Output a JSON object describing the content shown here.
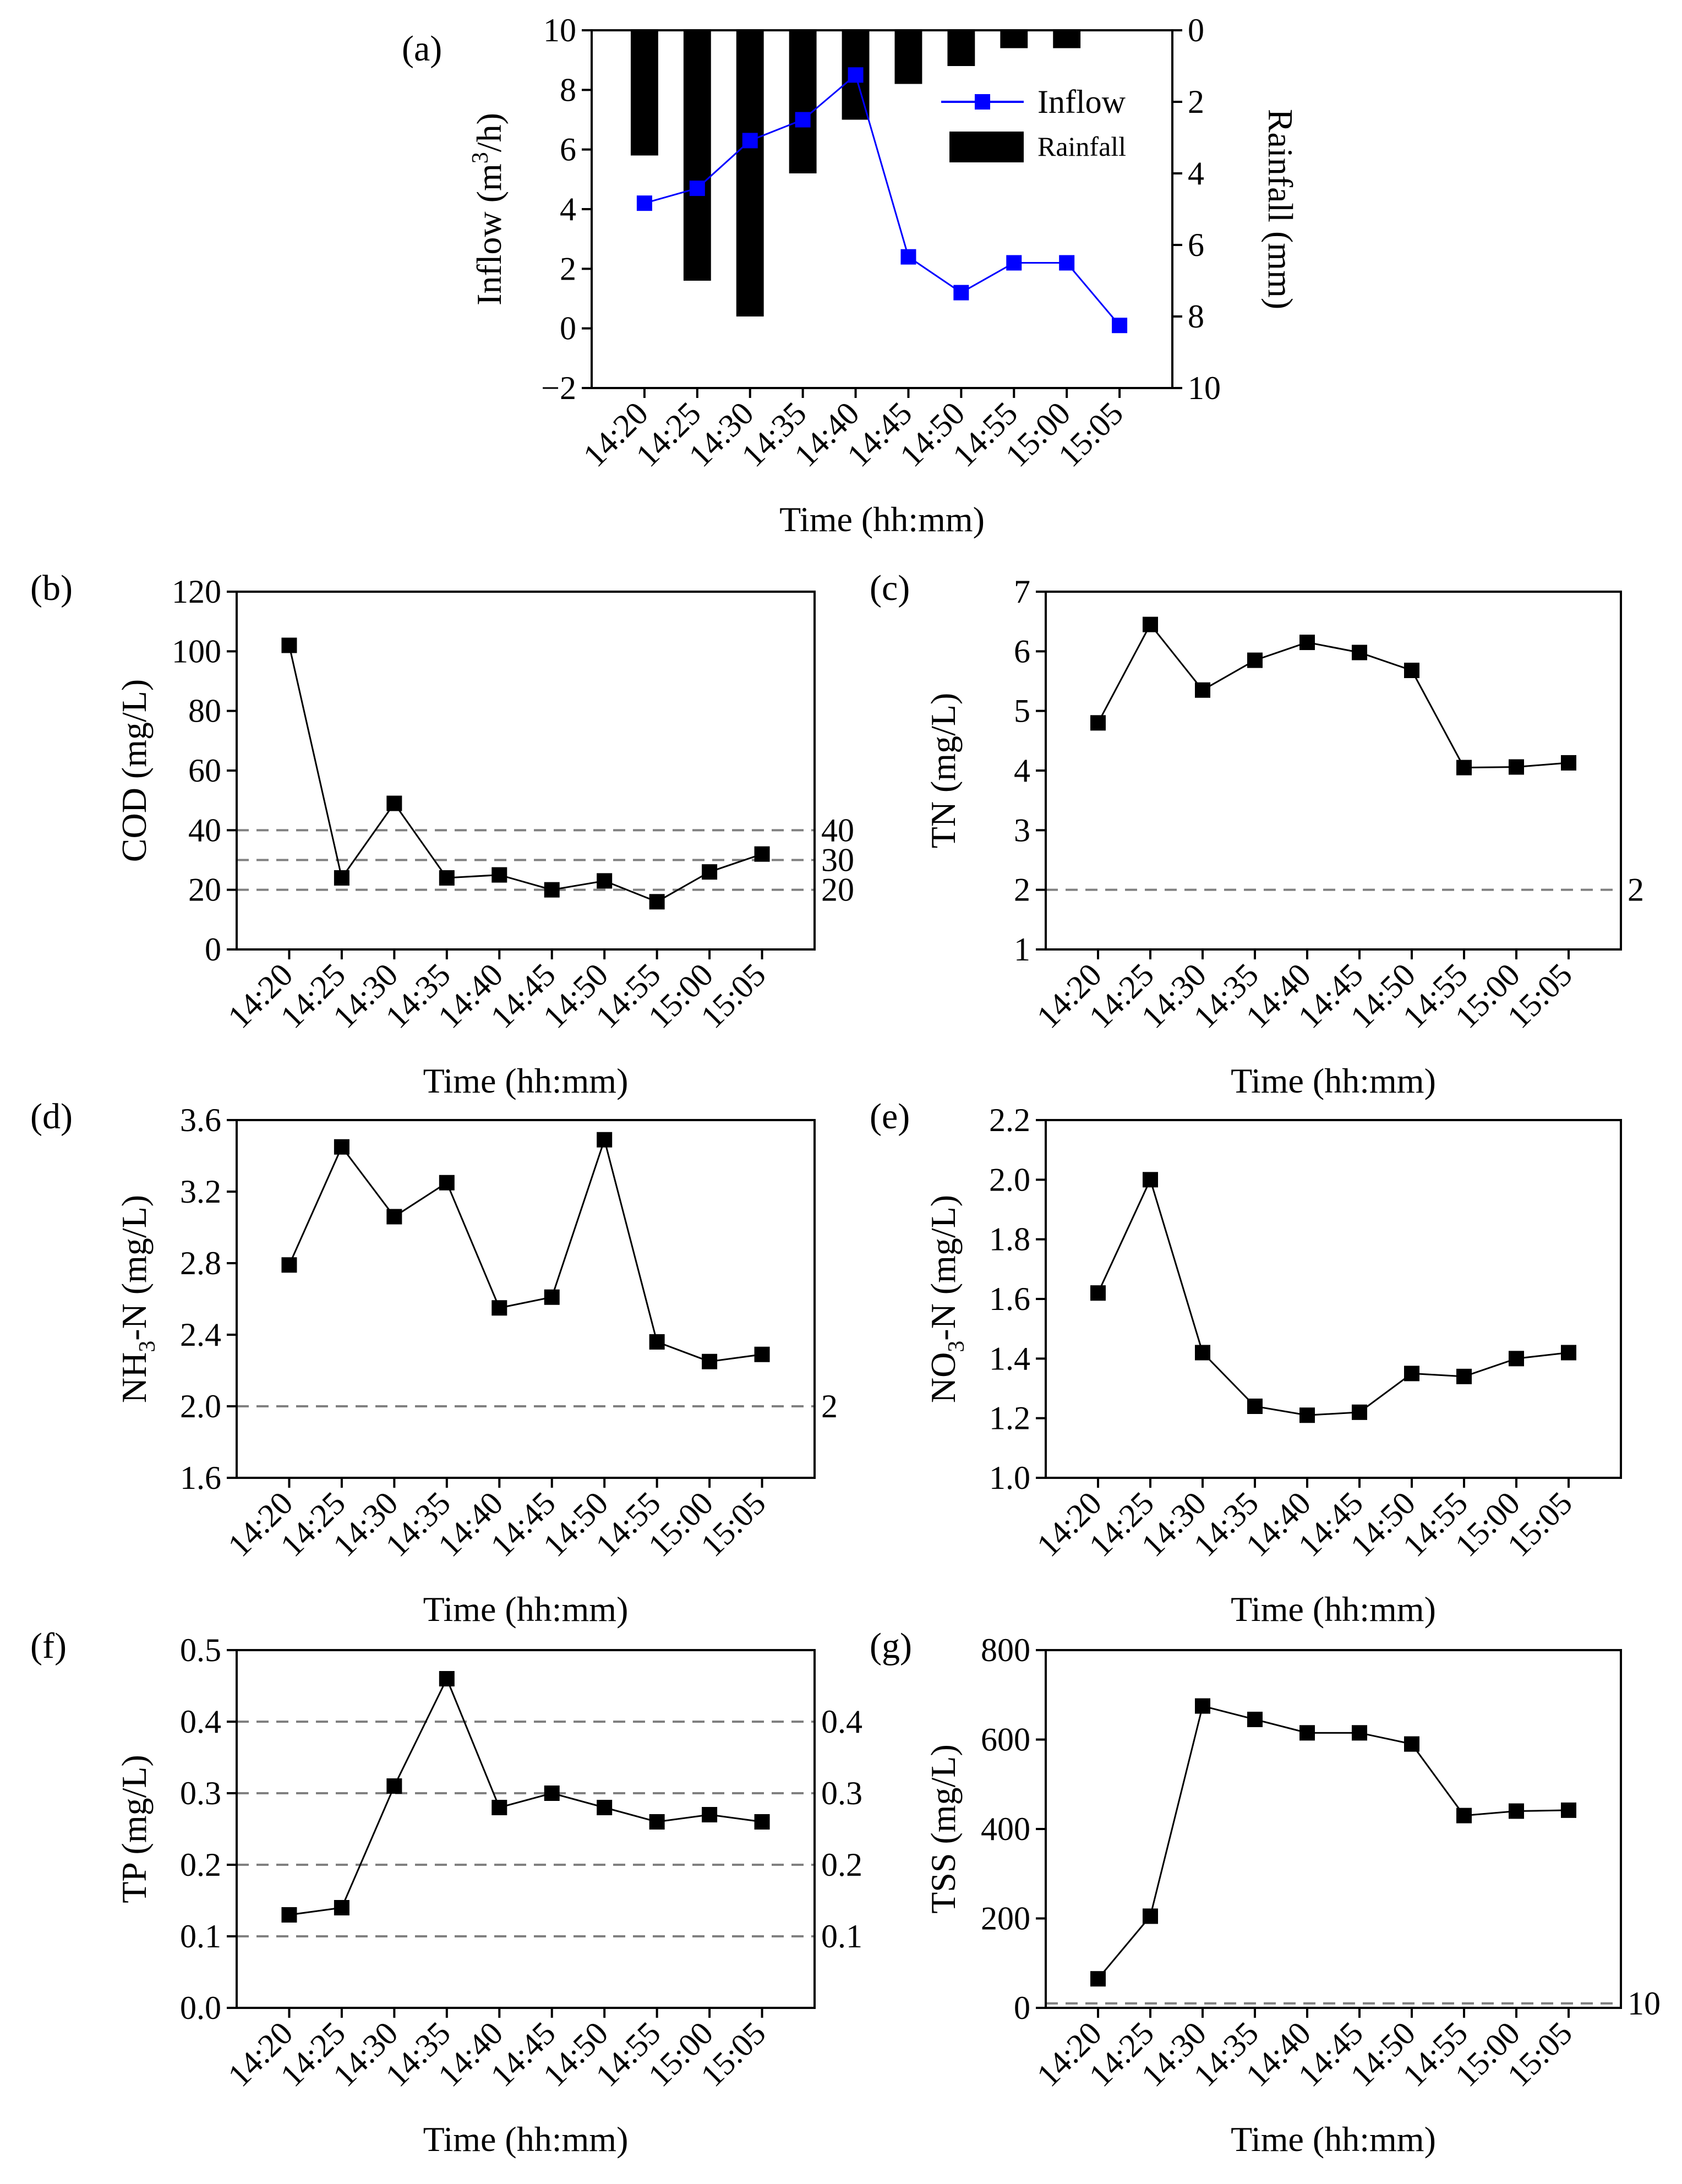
{
  "chart_data": [
    {
      "id": "a",
      "type": "bar+line",
      "panel_label": "(a)",
      "categories": [
        "14:20",
        "14:25",
        "14:30",
        "14:35",
        "14:40",
        "14:45",
        "14:50",
        "14:55",
        "15:00",
        "15:05"
      ],
      "xlabel": "Time (hh:mm)",
      "ylabel": "Inflow (m3/h)",
      "ylabel_parts": [
        "Inflow (m",
        "3",
        "/h)"
      ],
      "ylim": [
        -2,
        10
      ],
      "yticks": [
        -2,
        0,
        2,
        4,
        6,
        8,
        10
      ],
      "y2label": "Rainfall (mm)",
      "y2lim": [
        0,
        10
      ],
      "y2ticks": [
        0,
        2,
        4,
        6,
        8,
        10
      ],
      "y2_inverted": true,
      "series": [
        {
          "name": "Inflow",
          "kind": "line",
          "axis": "left",
          "color": "#0000ff",
          "marker": "square",
          "values": [
            4.2,
            4.7,
            6.3,
            7.0,
            8.5,
            2.4,
            1.2,
            2.2,
            2.2,
            0.1
          ]
        },
        {
          "name": "Rainfall",
          "kind": "bar",
          "axis": "right",
          "color": "#000000",
          "values": [
            3.5,
            7.0,
            8.0,
            4.0,
            2.5,
            1.5,
            1.0,
            0.5,
            0.5,
            0.0
          ]
        }
      ],
      "legend_position": "top-right",
      "grid": false
    },
    {
      "id": "b",
      "type": "line",
      "panel_label": "(b)",
      "categories": [
        "14:20",
        "14:25",
        "14:30",
        "14:35",
        "14:40",
        "14:45",
        "14:50",
        "14:55",
        "15:00",
        "15:05"
      ],
      "xlabel": "Time (hh:mm)",
      "ylabel": "COD (mg/L)",
      "ylim": [
        0,
        120
      ],
      "yticks": [
        0,
        20,
        40,
        60,
        80,
        100,
        120
      ],
      "series": [
        {
          "values": [
            102,
            24,
            49,
            24,
            25,
            20,
            23,
            16,
            26,
            32
          ]
        }
      ],
      "reference_lines": [
        {
          "value": 40,
          "label": "40"
        },
        {
          "value": 30,
          "label": "30"
        },
        {
          "value": 20,
          "label": "20"
        }
      ],
      "grid": false
    },
    {
      "id": "c",
      "type": "line",
      "panel_label": "(c)",
      "categories": [
        "14:20",
        "14:25",
        "14:30",
        "14:35",
        "14:40",
        "14:45",
        "14:50",
        "14:55",
        "15:00",
        "15:05"
      ],
      "xlabel": "Time (hh:mm)",
      "ylabel": "TN (mg/L)",
      "ylim": [
        1,
        7
      ],
      "yticks": [
        1,
        2,
        3,
        4,
        5,
        6,
        7
      ],
      "series": [
        {
          "values": [
            4.8,
            6.45,
            5.35,
            5.85,
            6.15,
            5.98,
            5.68,
            4.05,
            4.06,
            4.13
          ]
        }
      ],
      "reference_lines": [
        {
          "value": 2,
          "label": "2"
        }
      ],
      "grid": false
    },
    {
      "id": "d",
      "type": "line",
      "panel_label": "(d)",
      "categories": [
        "14:20",
        "14:25",
        "14:30",
        "14:35",
        "14:40",
        "14:45",
        "14:50",
        "14:55",
        "15:00",
        "15:05"
      ],
      "xlabel": "Time (hh:mm)",
      "ylabel": "NH3-N (mg/L)",
      "ylabel_parts": [
        "NH",
        "3",
        "-N (mg/L)"
      ],
      "ylim": [
        1.6,
        3.6
      ],
      "yticks": [
        1.6,
        2.0,
        2.4,
        2.8,
        3.2,
        3.6
      ],
      "series": [
        {
          "values": [
            2.79,
            3.45,
            3.06,
            3.25,
            2.55,
            2.61,
            3.49,
            2.36,
            2.25,
            2.29
          ]
        }
      ],
      "reference_lines": [
        {
          "value": 2.0,
          "label": "2"
        }
      ],
      "grid": false
    },
    {
      "id": "e",
      "type": "line",
      "panel_label": "(e)",
      "categories": [
        "14:20",
        "14:25",
        "14:30",
        "14:35",
        "14:40",
        "14:45",
        "14:50",
        "14:55",
        "15:00",
        "15:05"
      ],
      "xlabel": "Time (hh:mm)",
      "ylabel": "NO3-N (mg/L)",
      "ylabel_parts": [
        "NO",
        "3",
        "-N (mg/L)"
      ],
      "ylim": [
        1.0,
        2.2
      ],
      "yticks": [
        1.0,
        1.2,
        1.4,
        1.6,
        1.8,
        2.0,
        2.2
      ],
      "series": [
        {
          "values": [
            1.62,
            2.0,
            1.42,
            1.24,
            1.21,
            1.22,
            1.35,
            1.34,
            1.4,
            1.42
          ]
        }
      ],
      "reference_lines": [],
      "grid": false
    },
    {
      "id": "f",
      "type": "line",
      "panel_label": "(f)",
      "categories": [
        "14:20",
        "14:25",
        "14:30",
        "14:35",
        "14:40",
        "14:45",
        "14:50",
        "14:55",
        "15:00",
        "15:05"
      ],
      "xlabel": "Time (hh:mm)",
      "ylabel": "TP (mg/L)",
      "ylim": [
        0.0,
        0.5
      ],
      "yticks": [
        0.0,
        0.1,
        0.2,
        0.3,
        0.4,
        0.5
      ],
      "series": [
        {
          "values": [
            0.13,
            0.14,
            0.31,
            0.46,
            0.28,
            0.3,
            0.28,
            0.26,
            0.27,
            0.26
          ]
        }
      ],
      "reference_lines": [
        {
          "value": 0.4,
          "label": "0.4"
        },
        {
          "value": 0.3,
          "label": "0.3"
        },
        {
          "value": 0.2,
          "label": "0.2"
        },
        {
          "value": 0.1,
          "label": "0.1"
        }
      ],
      "grid": false
    },
    {
      "id": "g",
      "type": "line",
      "panel_label": "(g)",
      "categories": [
        "14:20",
        "14:25",
        "14:30",
        "14:35",
        "14:40",
        "14:45",
        "14:50",
        "14:55",
        "15:00",
        "15:05"
      ],
      "xlabel": "Time (hh:mm)",
      "ylabel": "TSS (mg/L)",
      "ylim": [
        0,
        800
      ],
      "yticks": [
        0,
        200,
        400,
        600,
        800
      ],
      "series": [
        {
          "values": [
            65,
            205,
            675,
            645,
            615,
            615,
            590,
            430,
            440,
            442
          ]
        }
      ],
      "reference_lines": [
        {
          "value": 10,
          "label": "10"
        }
      ],
      "grid": false
    }
  ]
}
